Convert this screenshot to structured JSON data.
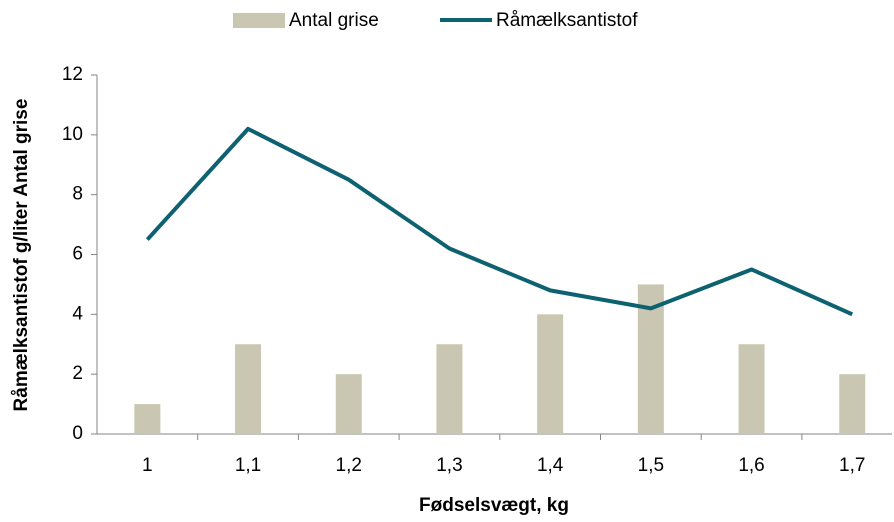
{
  "chart_data": {
    "type": "combo",
    "categories": [
      "1",
      "1,1",
      "1,2",
      "1,3",
      "1,4",
      "1,5",
      "1,6",
      "1,7"
    ],
    "series": [
      {
        "name": "Antal grise",
        "kind": "bar",
        "color": "#c9c7b1",
        "values": [
          1,
          3,
          2,
          3,
          4,
          5,
          3,
          2
        ]
      },
      {
        "name": "Råmælksantistof",
        "kind": "line",
        "color": "#0e6170",
        "values": [
          6.5,
          10.2,
          8.5,
          6.2,
          4.8,
          4.2,
          5.5,
          4.0
        ]
      }
    ],
    "x_label": "Fødselsvægt, kg",
    "y_label": "Råmælksantistof g/liter Antal grise",
    "ylim": [
      0,
      12
    ],
    "yticks": [
      0,
      2,
      4,
      6,
      8,
      10,
      12
    ],
    "grid": false,
    "legend": "top"
  }
}
